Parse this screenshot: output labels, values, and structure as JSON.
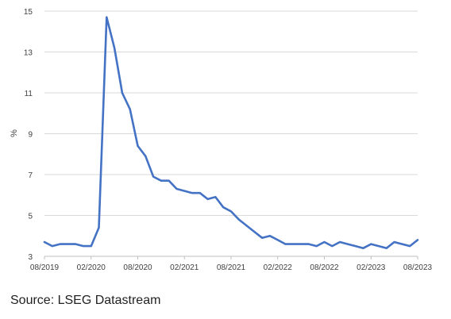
{
  "source": "Source: LSEG Datastream",
  "chart_data": {
    "type": "line",
    "title": "",
    "xlabel": "",
    "ylabel": "%",
    "ylim": [
      3,
      15
    ],
    "y_ticks": [
      3,
      5,
      7,
      9,
      11,
      13,
      15
    ],
    "x_tick_labels": [
      "08/2019",
      "02/2020",
      "08/2020",
      "02/2021",
      "08/2021",
      "02/2022",
      "08/2022",
      "02/2023",
      "08/2023"
    ],
    "grid": "horizontal",
    "line_color": "#4472c4",
    "series": [
      {
        "x": [
          "08/2019",
          "09/2019",
          "10/2019",
          "11/2019",
          "12/2019",
          "01/2020",
          "02/2020",
          "03/2020",
          "04/2020",
          "05/2020",
          "06/2020",
          "07/2020",
          "08/2020",
          "09/2020",
          "10/2020",
          "11/2020",
          "12/2020",
          "01/2021",
          "02/2021",
          "03/2021",
          "04/2021",
          "05/2021",
          "06/2021",
          "07/2021",
          "08/2021",
          "09/2021",
          "10/2021",
          "11/2021",
          "12/2021",
          "01/2022",
          "02/2022",
          "03/2022",
          "04/2022",
          "05/2022",
          "06/2022",
          "07/2022",
          "08/2022",
          "09/2022",
          "10/2022",
          "11/2022",
          "12/2022",
          "01/2023",
          "02/2023",
          "03/2023",
          "04/2023",
          "05/2023",
          "06/2023",
          "07/2023",
          "08/2023"
        ],
        "values": [
          3.7,
          3.5,
          3.6,
          3.6,
          3.6,
          3.5,
          3.5,
          4.4,
          14.7,
          13.2,
          11.0,
          10.2,
          8.4,
          7.9,
          6.9,
          6.7,
          6.7,
          6.3,
          6.2,
          6.1,
          6.1,
          5.8,
          5.9,
          5.4,
          5.2,
          4.8,
          4.5,
          4.2,
          3.9,
          4.0,
          3.8,
          3.6,
          3.6,
          3.6,
          3.6,
          3.5,
          3.7,
          3.5,
          3.7,
          3.6,
          3.5,
          3.4,
          3.6,
          3.5,
          3.4,
          3.7,
          3.6,
          3.5,
          3.8
        ]
      }
    ]
  }
}
